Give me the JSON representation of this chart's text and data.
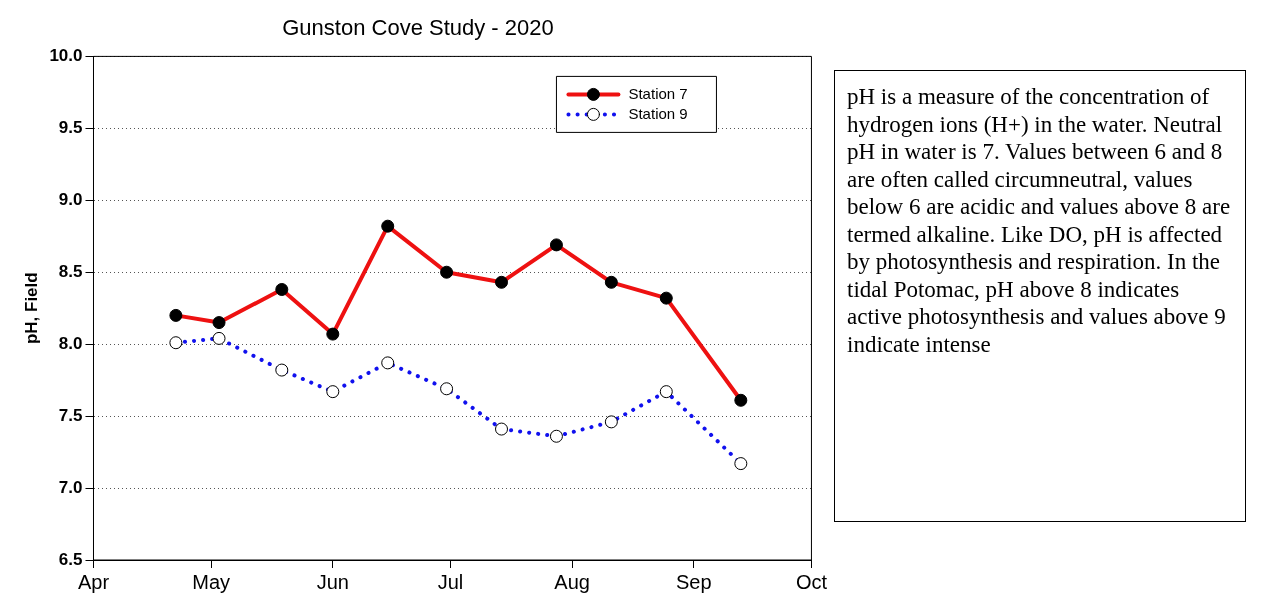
{
  "chart_data": {
    "type": "line",
    "title": "Gunston Cove Study - 2020",
    "ylabel": "pH, Field",
    "x": [
      "2020-04-22",
      "2020-05-03",
      "2020-05-19",
      "2020-06-01",
      "2020-06-15",
      "2020-06-30",
      "2020-07-14",
      "2020-07-28",
      "2020-08-11",
      "2020-08-25",
      "2020-09-13"
    ],
    "series": [
      {
        "name": "Station 7",
        "color": "#ee1111",
        "line_style": "solid",
        "values": [
          8.2,
          8.15,
          8.38,
          8.07,
          8.82,
          8.5,
          8.43,
          8.69,
          8.43,
          8.32,
          7.61
        ]
      },
      {
        "name": "Station 9",
        "color": "#1111ee",
        "line_style": "dotted",
        "values": [
          8.01,
          8.04,
          7.82,
          7.67,
          7.87,
          7.69,
          7.41,
          7.36,
          7.46,
          7.67,
          7.17
        ]
      }
    ],
    "xlim": [
      "2020-04-01",
      "2020-10-01"
    ],
    "xticks": [
      {
        "value": "2020-04-01",
        "label": "Apr"
      },
      {
        "value": "2020-05-01",
        "label": "May"
      },
      {
        "value": "2020-06-01",
        "label": "Jun"
      },
      {
        "value": "2020-07-01",
        "label": "Jul"
      },
      {
        "value": "2020-08-01",
        "label": "Aug"
      },
      {
        "value": "2020-09-01",
        "label": "Sep"
      },
      {
        "value": "2020-10-01",
        "label": "Oct"
      }
    ],
    "ylim": [
      6.5,
      10.0
    ],
    "yticks": [
      {
        "value": 6.5,
        "label": "6.5"
      },
      {
        "value": 7.0,
        "label": "7.0"
      },
      {
        "value": 7.5,
        "label": "7.5"
      },
      {
        "value": 8.0,
        "label": "8.0"
      },
      {
        "value": 8.5,
        "label": "8.5"
      },
      {
        "value": 9.0,
        "label": "9.0"
      },
      {
        "value": 9.5,
        "label": "9.5"
      },
      {
        "value": 10.0,
        "label": "10.0"
      }
    ],
    "grid": "y",
    "legend": "top right",
    "marker": "circle",
    "annotations": [
      "pH is a measure of the concentration of hydrogen ions (H+) in the water.  Neutral pH in water is 7. Values between 6 and 8 are often called circumneutral, values below 6 are acidic and values above 8 are termed alkaline.  Like DO, pH is affected by photosynthesis and respiration. In the tidal Potomac, pH above 8 indicates active photosynthesis and values above 9 indicate intense"
    ]
  }
}
